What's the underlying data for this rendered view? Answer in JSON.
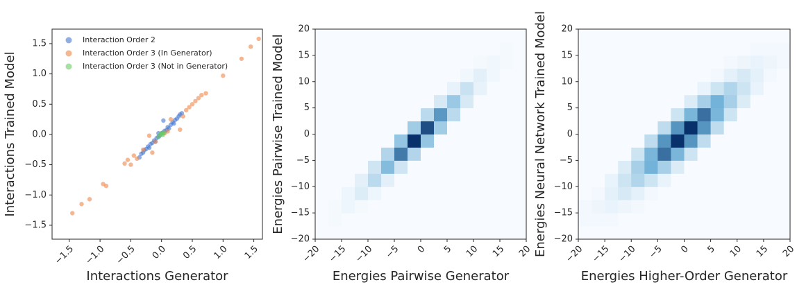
{
  "chart_data": [
    {
      "type": "scatter",
      "xlabel": "Interactions Generator",
      "ylabel": "Interactions Trained Model",
      "xlim": [
        -1.78,
        1.64
      ],
      "ylim": [
        -1.73,
        1.74
      ],
      "xticks": [
        {
          "value": -1.5,
          "label": "−1.5"
        },
        {
          "value": -1.0,
          "label": "−1.0"
        },
        {
          "value": -0.5,
          "label": "−0.5"
        },
        {
          "value": 0,
          "label": "0.0"
        },
        {
          "value": 0.5,
          "label": "0.5"
        },
        {
          "value": 1.0,
          "label": "1.0"
        },
        {
          "value": 1.5,
          "label": "1.5"
        }
      ],
      "yticks": [
        {
          "value": -1.5,
          "label": "−1.5"
        },
        {
          "value": -1.0,
          "label": "−1.0"
        },
        {
          "value": -0.5,
          "label": "−0.5"
        },
        {
          "value": 0,
          "label": "0.0"
        },
        {
          "value": 0.5,
          "label": "0.5"
        },
        {
          "value": 1.0,
          "label": "1.0"
        },
        {
          "value": 1.5,
          "label": "1.5"
        }
      ],
      "legend": "upper left",
      "series": [
        {
          "name": "Interaction Order 2",
          "color": "#4878d0",
          "x": [
            -0.36,
            -0.33,
            -0.3,
            -0.28,
            -0.25,
            -0.22,
            -0.2,
            -0.18,
            -0.15,
            -0.12,
            -0.1,
            -0.08,
            -0.05,
            -0.03,
            0,
            0.02,
            0.05,
            0.08,
            0.1,
            0.12,
            0.15,
            0.18,
            0.2,
            0.22,
            0.25,
            0.28,
            0.3,
            0.33,
            -0.05,
            0.03
          ],
          "values": [
            -0.38,
            -0.32,
            -0.3,
            -0.26,
            -0.24,
            -0.2,
            -0.22,
            -0.16,
            -0.14,
            -0.1,
            -0.12,
            -0.06,
            -0.04,
            -0.02,
            0.02,
            0.03,
            0.06,
            0.07,
            0.12,
            0.1,
            0.16,
            0.2,
            0.18,
            0.24,
            0.26,
            0.3,
            0.33,
            0.35,
            0.02,
            0.23
          ]
        },
        {
          "name": "Interaction Order 3 (In Generator)",
          "color": "#ee854a",
          "x": [
            -1.45,
            -1.3,
            -1.17,
            -0.95,
            -0.9,
            -0.6,
            -0.55,
            -0.5,
            -0.45,
            -0.4,
            -0.3,
            -0.2,
            -0.15,
            -0.1,
            0.05,
            0.1,
            0.15,
            0.3,
            0.35,
            0.4,
            0.45,
            0.5,
            0.55,
            0.6,
            0.65,
            0.72,
            1.0,
            1.3,
            1.45,
            1.58
          ],
          "values": [
            -1.3,
            -1.15,
            -1.07,
            -0.82,
            -0.85,
            -0.48,
            -0.42,
            -0.5,
            -0.35,
            -0.4,
            -0.25,
            -0.02,
            -0.3,
            -0.12,
            0.02,
            0.05,
            0.25,
            0.08,
            0.3,
            0.4,
            0.45,
            0.5,
            0.55,
            0.6,
            0.65,
            0.68,
            0.97,
            1.25,
            1.45,
            1.58
          ]
        },
        {
          "name": "Interaction Order 3 (Not in Generator)",
          "color": "#6acc64",
          "x": [
            -0.05,
            -0.02,
            0,
            0.02,
            0.04,
            0.01
          ],
          "values": [
            -0.04,
            0.0,
            0.02,
            -0.01,
            0.03,
            0.01
          ]
        }
      ]
    },
    {
      "type": "heatmap",
      "xlabel": "Energies Pairwise Generator",
      "ylabel": "Energies Pairwise Trained Model",
      "xlim": [
        -20,
        20
      ],
      "ylim": [
        -20,
        20
      ],
      "xticks": [
        {
          "value": -20,
          "label": "−20"
        },
        {
          "value": -15,
          "label": "−15"
        },
        {
          "value": -10,
          "label": "−10"
        },
        {
          "value": -5,
          "label": "−5"
        },
        0,
        5,
        10,
        15,
        20
      ],
      "yticks": [
        {
          "value": -20,
          "label": "−20"
        },
        {
          "value": -15,
          "label": "−15"
        },
        {
          "value": -10,
          "label": "−10"
        },
        {
          "value": -5,
          "label": "−5"
        },
        0,
        5,
        10,
        15,
        20
      ],
      "colors": [
        "#f7fbff",
        "#6baed6",
        "#08306b"
      ],
      "xbins": [
        -20,
        -17.5,
        -15,
        -12.5,
        -10,
        -7.5,
        -5,
        -2.5,
        0,
        2.5,
        5,
        7.5,
        10,
        12.5,
        15,
        17.5,
        20
      ],
      "ybins": [
        -20,
        -17.5,
        -15,
        -12.5,
        -10,
        -7.5,
        -5,
        -2.5,
        0,
        2.5,
        5,
        7.5,
        10,
        12.5,
        15,
        17.5,
        20
      ],
      "values": [
        [
          0,
          0,
          0,
          0,
          0,
          0,
          0,
          0,
          0,
          0,
          0,
          0,
          0,
          0,
          0,
          0
        ],
        [
          0,
          1,
          0,
          0,
          0,
          0,
          0,
          0,
          0,
          0,
          0,
          0,
          0,
          0,
          0,
          0
        ],
        [
          0,
          1,
          3,
          1,
          0,
          0,
          0,
          0,
          0,
          0,
          0,
          0,
          0,
          0,
          0,
          0
        ],
        [
          0,
          0,
          3,
          8,
          3,
          0,
          0,
          0,
          0,
          0,
          0,
          0,
          0,
          0,
          0,
          0
        ],
        [
          0,
          0,
          0,
          6,
          18,
          6,
          0,
          0,
          0,
          0,
          0,
          0,
          0,
          0,
          0,
          0
        ],
        [
          0,
          0,
          0,
          0,
          12,
          35,
          12,
          0,
          0,
          0,
          0,
          0,
          0,
          0,
          0,
          0
        ],
        [
          0,
          0,
          0,
          0,
          0,
          21,
          60,
          21,
          0,
          0,
          0,
          0,
          0,
          0,
          0,
          0
        ],
        [
          0,
          0,
          0,
          0,
          0,
          0,
          30,
          85,
          30,
          0,
          0,
          0,
          0,
          0,
          0,
          0
        ],
        [
          0,
          0,
          0,
          0,
          0,
          0,
          0,
          26,
          75,
          26,
          0,
          0,
          0,
          0,
          0,
          0
        ],
        [
          0,
          0,
          0,
          0,
          0,
          0,
          0,
          0,
          18,
          50,
          18,
          0,
          0,
          0,
          0,
          0
        ],
        [
          0,
          0,
          0,
          0,
          0,
          0,
          0,
          0,
          0,
          10,
          28,
          10,
          0,
          0,
          0,
          0
        ],
        [
          0,
          0,
          0,
          0,
          0,
          0,
          0,
          0,
          0,
          0,
          5,
          14,
          5,
          0,
          0,
          0
        ],
        [
          0,
          0,
          0,
          0,
          0,
          0,
          0,
          0,
          0,
          0,
          0,
          2,
          6,
          2,
          0,
          0
        ],
        [
          0,
          0,
          0,
          0,
          0,
          0,
          0,
          0,
          0,
          0,
          0,
          0,
          1,
          2,
          1,
          0
        ],
        [
          0,
          0,
          0,
          0,
          0,
          0,
          0,
          0,
          0,
          0,
          0,
          0,
          0,
          0,
          1,
          0
        ],
        [
          0,
          0,
          0,
          0,
          0,
          0,
          0,
          0,
          0,
          0,
          0,
          0,
          0,
          0,
          0,
          0
        ]
      ]
    },
    {
      "type": "heatmap",
      "xlabel": "Energies Higher-Order Generator",
      "ylabel": "Energies Neural Network Trained Model",
      "xlim": [
        -20,
        20
      ],
      "ylim": [
        -20,
        20
      ],
      "xticks": [
        {
          "value": -20,
          "label": "−20"
        },
        {
          "value": -15,
          "label": "−15"
        },
        {
          "value": -10,
          "label": "−10"
        },
        {
          "value": -5,
          "label": "−5"
        },
        0,
        5,
        10,
        15,
        20
      ],
      "yticks": [
        {
          "value": -20,
          "label": "−20"
        },
        {
          "value": -15,
          "label": "−15"
        },
        {
          "value": -10,
          "label": "−10"
        },
        {
          "value": -5,
          "label": "−5"
        },
        0,
        5,
        10,
        15,
        20
      ],
      "colors": [
        "#f7fbff",
        "#6baed6",
        "#08306b"
      ],
      "xbins": [
        -20,
        -17.5,
        -15,
        -12.5,
        -10,
        -7.5,
        -5,
        -2.5,
        0,
        2.5,
        5,
        7.5,
        10,
        12.5,
        15,
        17.5,
        20
      ],
      "ybins": [
        -20,
        -17.5,
        -15,
        -12.5,
        -10,
        -7.5,
        -5,
        -2.5,
        0,
        2.5,
        5,
        7.5,
        10,
        12.5,
        15,
        17.5,
        20
      ],
      "values": [
        [
          0,
          0,
          0,
          0,
          0,
          0,
          0,
          0,
          0,
          0,
          0,
          0,
          0,
          0,
          0,
          0
        ],
        [
          1,
          1,
          1,
          0,
          0,
          0,
          0,
          0,
          0,
          0,
          0,
          0,
          0,
          0,
          0,
          0
        ],
        [
          1,
          2,
          3,
          2,
          1,
          0,
          0,
          0,
          0,
          0,
          0,
          0,
          0,
          0,
          0,
          0
        ],
        [
          0,
          1,
          4,
          7,
          4,
          1,
          0,
          0,
          0,
          0,
          0,
          0,
          0,
          0,
          0,
          0
        ],
        [
          0,
          0,
          3,
          9,
          15,
          9,
          3,
          0,
          0,
          0,
          0,
          0,
          0,
          0,
          0,
          0
        ],
        [
          0,
          0,
          0,
          6,
          17,
          28,
          17,
          6,
          0,
          0,
          0,
          0,
          0,
          0,
          0,
          0
        ],
        [
          0,
          0,
          0,
          0,
          9,
          27,
          45,
          27,
          9,
          0,
          0,
          0,
          0,
          0,
          0,
          0
        ],
        [
          0,
          0,
          0,
          0,
          0,
          12,
          36,
          60,
          36,
          12,
          0,
          0,
          0,
          0,
          0,
          0
        ],
        [
          0,
          0,
          0,
          0,
          0,
          0,
          12,
          36,
          60,
          36,
          12,
          0,
          0,
          0,
          0,
          0
        ],
        [
          0,
          0,
          0,
          0,
          0,
          0,
          0,
          9,
          27,
          45,
          27,
          9,
          0,
          0,
          0,
          0
        ],
        [
          0,
          0,
          0,
          0,
          0,
          0,
          0,
          0,
          6,
          17,
          28,
          17,
          6,
          0,
          0,
          0
        ],
        [
          0,
          0,
          0,
          0,
          0,
          0,
          0,
          0,
          0,
          3,
          9,
          15,
          9,
          3,
          0,
          0
        ],
        [
          0,
          0,
          0,
          0,
          0,
          0,
          0,
          0,
          0,
          0,
          1,
          4,
          7,
          4,
          1,
          0
        ],
        [
          0,
          0,
          0,
          0,
          0,
          0,
          0,
          0,
          0,
          0,
          0,
          1,
          2,
          3,
          2,
          1
        ],
        [
          0,
          0,
          0,
          0,
          0,
          0,
          0,
          0,
          0,
          0,
          0,
          0,
          0,
          1,
          1,
          1
        ],
        [
          0,
          0,
          0,
          0,
          0,
          0,
          0,
          0,
          0,
          0,
          0,
          0,
          0,
          0,
          0,
          0
        ]
      ]
    }
  ]
}
